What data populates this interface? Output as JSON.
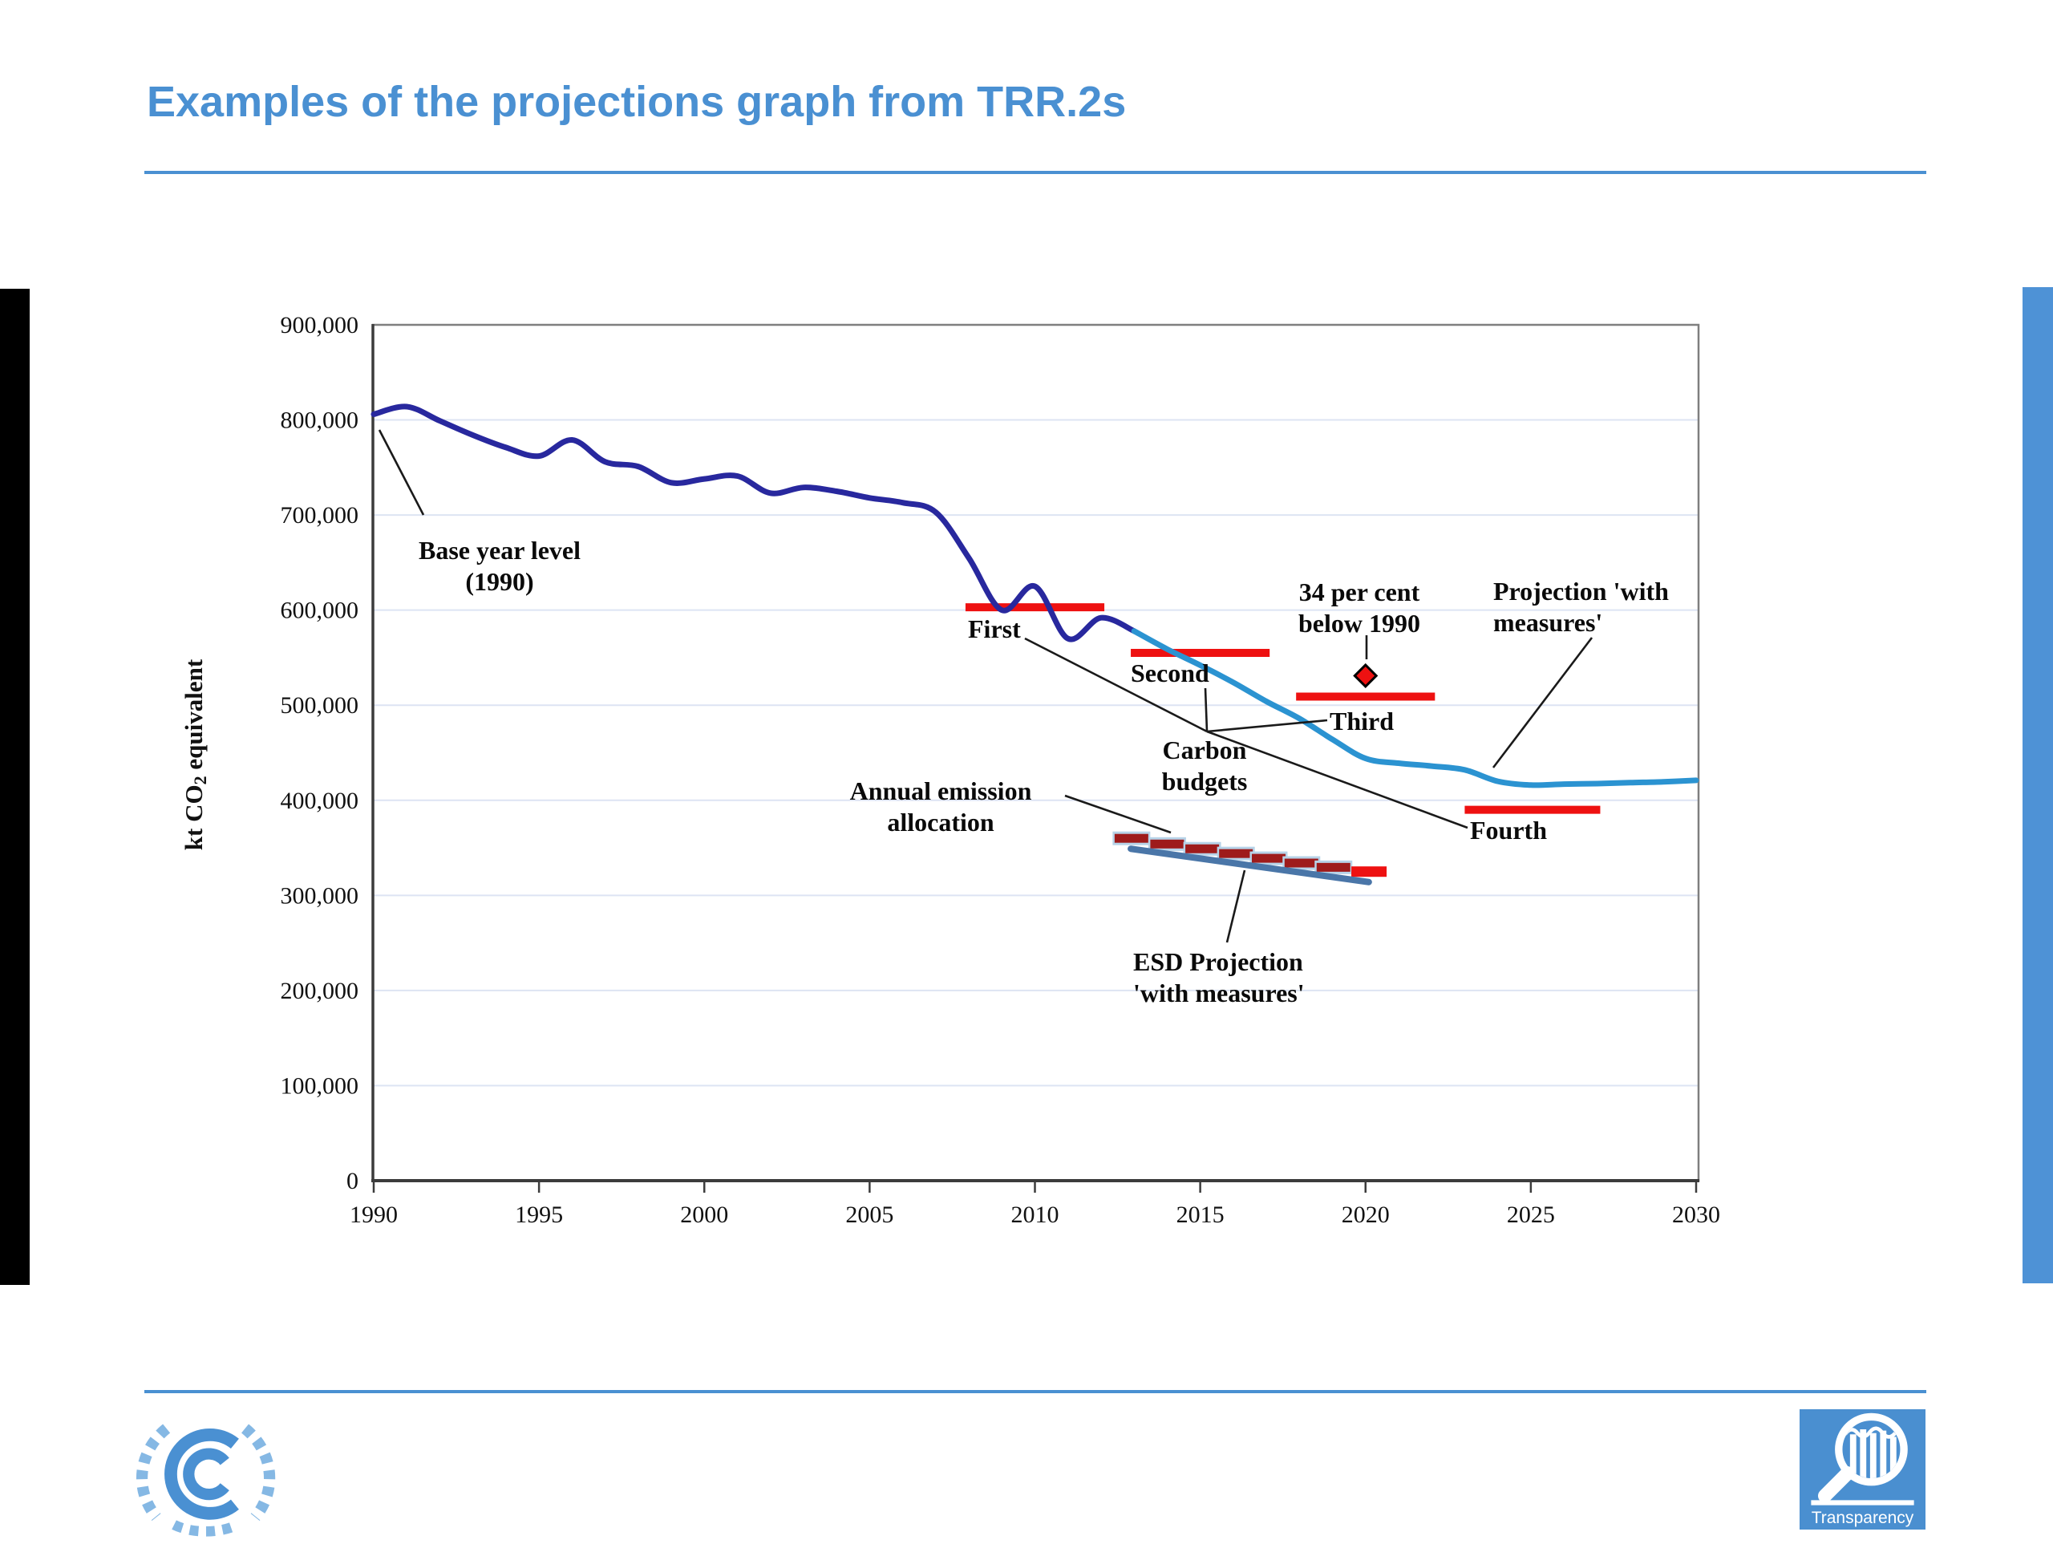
{
  "header": {
    "title": "Examples of the projections graph from TRR.2s"
  },
  "footer": {
    "transparency_label": "Transparency"
  },
  "colors": {
    "title_blue": "#4a90d2",
    "side_bar_right_blue": "#4e92d6",
    "historical_navy": "#28289e",
    "projection_blue": "#2b93d1",
    "budget_red": "#ee1111",
    "aea_dark_red": "#9e1b1b",
    "aea_box_blue": "#b7d3e8",
    "esd_steel_blue": "#4a76a8",
    "gridline": "#dde4f3",
    "plot_border": "#7f7f7f",
    "axis": "#3c3c3c",
    "leader": "#1a1a1a",
    "transparency_logo_bg": "#4a8fd0"
  },
  "chart_data": {
    "type": "line",
    "title": "",
    "xlabel": "",
    "ylabel_parts": {
      "prefix": "kt CO",
      "sub": "2",
      "suffix": " equivalent"
    },
    "xlim": [
      1990,
      2030
    ],
    "ylim": [
      0,
      900000
    ],
    "grid": true,
    "x_ticks": [
      1990,
      1995,
      2000,
      2005,
      2010,
      2015,
      2020,
      2025,
      2030
    ],
    "x_tick_labels": [
      "1990",
      "1995",
      "2000",
      "2005",
      "2010",
      "2015",
      "2020",
      "2025",
      "2030"
    ],
    "y_ticks": [
      0,
      100000,
      200000,
      300000,
      400000,
      500000,
      600000,
      700000,
      800000,
      900000
    ],
    "y_tick_labels": [
      "0",
      "100,000",
      "200,000",
      "300,000",
      "400,000",
      "500,000",
      "600,000",
      "700,000",
      "800,000",
      "900,000"
    ],
    "series": [
      {
        "name": "historical-emissions",
        "color": "#28289e",
        "width": 7,
        "points": [
          [
            1990,
            806000
          ],
          [
            1991,
            814000
          ],
          [
            1992,
            799000
          ],
          [
            1993,
            784000
          ],
          [
            1994,
            771000
          ],
          [
            1995,
            762000
          ],
          [
            1996,
            779000
          ],
          [
            1997,
            756000
          ],
          [
            1998,
            751000
          ],
          [
            1999,
            734000
          ],
          [
            2000,
            738000
          ],
          [
            2001,
            741000
          ],
          [
            2002,
            723000
          ],
          [
            2003,
            729000
          ],
          [
            2004,
            725000
          ],
          [
            2005,
            718000
          ],
          [
            2006,
            713000
          ],
          [
            2007,
            703000
          ],
          [
            2008,
            655000
          ],
          [
            2009,
            600000
          ],
          [
            2010,
            625000
          ],
          [
            2011,
            570000
          ],
          [
            2012,
            592000
          ],
          [
            2013,
            578000
          ]
        ]
      },
      {
        "name": "projection-with-measures",
        "color": "#2b93d1",
        "width": 7,
        "points": [
          [
            2013,
            578000
          ],
          [
            2014,
            559000
          ],
          [
            2015,
            542000
          ],
          [
            2016,
            524000
          ],
          [
            2017,
            504000
          ],
          [
            2018,
            486000
          ],
          [
            2019,
            464000
          ],
          [
            2020,
            444000
          ],
          [
            2021,
            439000
          ],
          [
            2022,
            436000
          ],
          [
            2023,
            432000
          ],
          [
            2024,
            420000
          ],
          [
            2025,
            416000
          ],
          [
            2026,
            417000
          ],
          [
            2027,
            417500
          ],
          [
            2028,
            418500
          ],
          [
            2029,
            419500
          ],
          [
            2030,
            421000
          ]
        ]
      }
    ],
    "carbon_budgets": {
      "group_label_lines": [
        "Carbon",
        "budgets"
      ],
      "color": "#ee1111",
      "bars": [
        {
          "label": "First",
          "from": 2007.9,
          "to": 2012.1,
          "value": 603000
        },
        {
          "label": "Second",
          "from": 2012.9,
          "to": 2017.1,
          "value": 555000
        },
        {
          "label": "Third",
          "from": 2017.9,
          "to": 2022.1,
          "value": 509000
        },
        {
          "label": "Fourth",
          "from": 2023.0,
          "to": 2027.1,
          "value": 390000
        }
      ]
    },
    "target_marker": {
      "label_lines": [
        "34 per cent",
        "below 1990"
      ],
      "year": 2020,
      "value": 531000,
      "fill": "#ee1111"
    },
    "annual_emission_allocation": {
      "label_lines": [
        "Annual emission",
        "allocation"
      ],
      "dashes": [
        {
          "year": 2012.92,
          "value": 360000
        },
        {
          "year": 2014.0,
          "value": 354000
        },
        {
          "year": 2015.06,
          "value": 349000
        },
        {
          "year": 2016.08,
          "value": 344000
        },
        {
          "year": 2017.07,
          "value": 339000
        },
        {
          "year": 2018.06,
          "value": 334000
        },
        {
          "year": 2019.03,
          "value": 329500
        },
        {
          "year": 2020.08,
          "value": 325000
        }
      ]
    },
    "esd_projection": {
      "label_lines": [
        "ESD Projection",
        "'with measures'"
      ],
      "from": {
        "year": 2012.9,
        "value": 349000
      },
      "to": {
        "year": 2020.1,
        "value": 314000
      }
    },
    "annotations": {
      "base_year": {
        "lines": [
          "Base year level",
          "(1990)"
        ]
      },
      "projection_label": {
        "lines": [
          "Projection 'with",
          "measures'"
        ]
      }
    }
  }
}
